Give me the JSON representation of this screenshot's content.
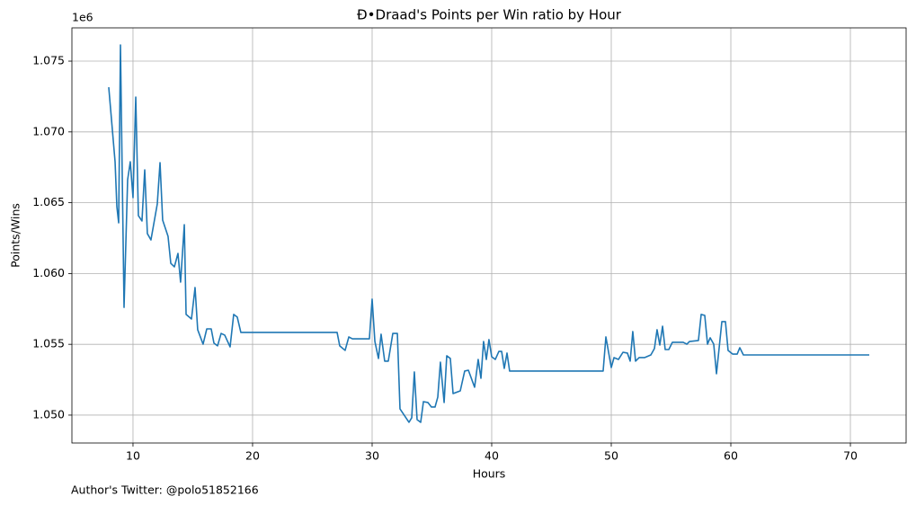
{
  "chart_data": {
    "type": "line",
    "title": "Ð•Draad's Points per Win ratio by Hour",
    "x_label": "Hours",
    "y_label": "Points/Wins",
    "y_offset_label": "1e6",
    "footnote": "Author's Twitter: @polo51852166",
    "grid": true,
    "xlim": [
      4.89,
      74.66
    ],
    "xticks": [
      10,
      20,
      30,
      40,
      50,
      60,
      70
    ],
    "ylim": [
      1.04803,
      1.07735
    ],
    "yticks": [
      {
        "value": 1.05,
        "label": "1.050"
      },
      {
        "value": 1.055,
        "label": "1.055"
      },
      {
        "value": 1.06,
        "label": "1.060"
      },
      {
        "value": 1.065,
        "label": "1.065"
      },
      {
        "value": 1.07,
        "label": "1.070"
      },
      {
        "value": 1.075,
        "label": "1.075"
      }
    ],
    "series": [
      {
        "color": "#1f77b4",
        "x": [
          7.97,
          8.5,
          8.65,
          8.8,
          8.95,
          9.25,
          9.55,
          9.77,
          10,
          10.23,
          10.45,
          10.75,
          10.98,
          11.2,
          11.5,
          12.03,
          12.26,
          12.48,
          12.93,
          13.16,
          13.46,
          13.76,
          13.98,
          14.29,
          14.44,
          14.89,
          15.19,
          15.41,
          15.86,
          16.17,
          16.54,
          16.77,
          17.07,
          17.37,
          17.67,
          18.12,
          18.42,
          18.72,
          19.02,
          27.07,
          27.29,
          27.74,
          28.05,
          28.35,
          29.77,
          30,
          30.23,
          30.53,
          30.75,
          31.05,
          31.35,
          31.73,
          32.11,
          32.33,
          33.08,
          33.31,
          33.53,
          33.76,
          34.06,
          34.29,
          34.66,
          34.96,
          35.26,
          35.49,
          35.71,
          36.02,
          36.24,
          36.54,
          36.77,
          37.37,
          37.74,
          38.05,
          38.57,
          38.87,
          39.1,
          39.32,
          39.55,
          39.77,
          40,
          40.3,
          40.6,
          40.83,
          41.05,
          41.28,
          41.5,
          49.32,
          49.55,
          50,
          50.23,
          50.6,
          50.98,
          51.35,
          51.58,
          51.8,
          52.03,
          52.33,
          52.78,
          53.31,
          53.61,
          53.83,
          54.06,
          54.29,
          54.51,
          54.81,
          55.11,
          56.02,
          56.32,
          56.54,
          57.29,
          57.52,
          57.82,
          58.05,
          58.27,
          58.57,
          58.8,
          59.25,
          59.55,
          59.77,
          60.15,
          60.53,
          60.75,
          61.05,
          71.58
        ],
        "values": [
          1.07316,
          1.06789,
          1.06472,
          1.06358,
          1.07614,
          1.05761,
          1.06662,
          1.06789,
          1.06536,
          1.07246,
          1.06409,
          1.06371,
          1.06732,
          1.06282,
          1.06237,
          1.06491,
          1.06783,
          1.06377,
          1.06263,
          1.06072,
          1.06047,
          1.06142,
          1.05939,
          1.06345,
          1.05711,
          1.05679,
          1.05901,
          1.05603,
          1.05501,
          1.05609,
          1.05609,
          1.05508,
          1.05489,
          1.05577,
          1.05565,
          1.05482,
          1.05711,
          1.05692,
          1.05584,
          1.05584,
          1.05489,
          1.05457,
          1.05552,
          1.05539,
          1.05539,
          1.05819,
          1.0552,
          1.054,
          1.05571,
          1.05381,
          1.05381,
          1.05577,
          1.05577,
          1.05044,
          1.04949,
          1.04981,
          1.05305,
          1.04968,
          1.04949,
          1.05095,
          1.05089,
          1.05057,
          1.05057,
          1.05127,
          1.05374,
          1.05089,
          1.05419,
          1.054,
          1.05152,
          1.05171,
          1.05311,
          1.05317,
          1.05197,
          1.05393,
          1.0526,
          1.0552,
          1.05393,
          1.05533,
          1.05412,
          1.05393,
          1.0545,
          1.0545,
          1.0533,
          1.05438,
          1.05311,
          1.05311,
          1.05552,
          1.05336,
          1.05406,
          1.05393,
          1.05444,
          1.05438,
          1.05381,
          1.0559,
          1.05381,
          1.05406,
          1.05406,
          1.05425,
          1.0547,
          1.05603,
          1.05495,
          1.05628,
          1.05463,
          1.05463,
          1.05514,
          1.05514,
          1.05501,
          1.0552,
          1.05527,
          1.05711,
          1.05704,
          1.05501,
          1.05546,
          1.05501,
          1.05292,
          1.0566,
          1.0566,
          1.05457,
          1.05431,
          1.05431,
          1.05476,
          1.05425,
          1.05425
        ]
      }
    ]
  }
}
